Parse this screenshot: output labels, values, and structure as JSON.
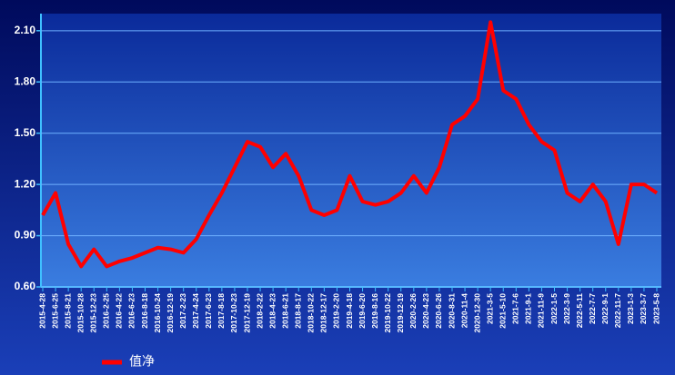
{
  "chart_data": {
    "type": "line",
    "categories": [
      "2015-4-28",
      "2015-6-25",
      "2015-8-21",
      "2015-10-28",
      "2015-12-23",
      "2016-2-25",
      "2016-4-22",
      "2016-6-23",
      "2016-8-18",
      "2016-10-24",
      "2016-12-19",
      "2017-2-23",
      "2017-4-24",
      "2017-6-23",
      "2017-8-18",
      "2017-10-23",
      "2017-12-19",
      "2018-2-22",
      "2018-4-23",
      "2018-6-21",
      "2018-8-17",
      "2018-10-22",
      "2018-12-17",
      "2019-2-20",
      "2019-4-18",
      "2019-6-20",
      "2019-8-16",
      "2019-10-22",
      "2019-12-19",
      "2020-2-26",
      "2020-4-23",
      "2020-6-26",
      "2020-8-31",
      "2020-11-4",
      "2020-12-30",
      "2021-3-5",
      "2021-5-10",
      "2021-7-6",
      "2021-9-1",
      "2021-11-9",
      "2022-1-5",
      "2022-3-9",
      "2022-5-11",
      "2022-7-7",
      "2022-9-1",
      "2022-11-7",
      "2023-1-3",
      "2023-3-7",
      "2023-5-8"
    ],
    "series": [
      {
        "name": "值净",
        "color": "#ff0000",
        "values": [
          1.02,
          1.15,
          0.85,
          0.72,
          0.82,
          0.72,
          0.75,
          0.77,
          0.8,
          0.83,
          0.82,
          0.8,
          0.88,
          1.02,
          1.15,
          1.3,
          1.45,
          1.42,
          1.3,
          1.38,
          1.25,
          1.05,
          1.02,
          1.05,
          1.25,
          1.1,
          1.08,
          1.1,
          1.15,
          1.25,
          1.15,
          1.3,
          1.55,
          1.6,
          1.7,
          2.15,
          1.75,
          1.7,
          1.55,
          1.45,
          1.4,
          1.15,
          1.1,
          1.2,
          1.1,
          0.85,
          1.2,
          1.2,
          1.15
        ]
      }
    ],
    "ylim": [
      0.6,
      2.2
    ],
    "yticks": [
      {
        "value": 0.6,
        "label": "0.60"
      },
      {
        "value": 0.9,
        "label": "0.90"
      },
      {
        "value": 1.2,
        "label": "1.20"
      },
      {
        "value": 1.5,
        "label": "1.50"
      },
      {
        "value": 1.8,
        "label": "1.80"
      },
      {
        "value": 2.1,
        "label": "2.10"
      }
    ],
    "grid": true
  }
}
